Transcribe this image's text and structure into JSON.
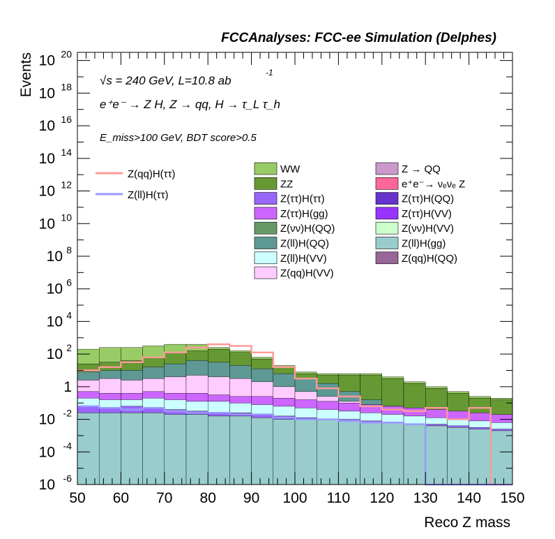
{
  "chart_data": {
    "type": "area",
    "header": "FCCAnalyses: FCC-ee Simulation (Delphes)",
    "xlabel": "Reco Z mass",
    "ylabel": "Events",
    "xlim": [
      50,
      150
    ],
    "ylim_log10": [
      -6,
      20.5
    ],
    "yscale": "log",
    "x_ticks": [
      "50",
      "60",
      "70",
      "80",
      "90",
      "100",
      "110",
      "120",
      "130",
      "140",
      "150"
    ],
    "y_ticks": [
      {
        "base": "10",
        "exp": "20",
        "value": 20
      },
      {
        "base": "10",
        "exp": "18",
        "value": 18
      },
      {
        "base": "10",
        "exp": "16",
        "value": 16
      },
      {
        "base": "10",
        "exp": "14",
        "value": 14
      },
      {
        "base": "10",
        "exp": "12",
        "value": 12
      },
      {
        "base": "10",
        "exp": "10",
        "value": 10
      },
      {
        "base": "10",
        "exp": "8",
        "value": 8
      },
      {
        "base": "10",
        "exp": "6",
        "value": 6
      },
      {
        "base": "10",
        "exp": "4",
        "value": 4
      },
      {
        "base": "10",
        "exp": "2",
        "value": 2
      },
      {
        "base": "1",
        "exp": "",
        "value": 0
      },
      {
        "base": "10",
        "exp": "-2",
        "value": -2
      },
      {
        "base": "10",
        "exp": "-4",
        "value": -4
      },
      {
        "base": "10",
        "exp": "-6",
        "value": -6
      }
    ],
    "annotations": {
      "line1": "√s = 240 GeV, L=10.8 ab",
      "line1_sup": "-1",
      "line2": "e⁺e⁻ → Z H, Z → qq, H → τ_L τ_h",
      "line3": "E_miss>100 GeV, BDT score>0.5"
    },
    "bins": [
      50,
      55,
      60,
      65,
      70,
      75,
      80,
      85,
      90,
      95,
      100,
      105,
      110,
      115,
      120,
      125,
      130,
      135,
      140,
      145,
      150
    ],
    "stack_log10_top": [
      {
        "name": "WW",
        "color": "#99cc66",
        "values": [
          2.3,
          2.4,
          2.4,
          2.5,
          2.6,
          2.6,
          2.4,
          2.2,
          1.8,
          1.3,
          0.9,
          0.8,
          0.8,
          0.8,
          0.6,
          0.3,
          0.0,
          -0.3,
          -0.6,
          -0.7
        ]
      },
      {
        "name": "ZZ",
        "color": "#669933",
        "values": [
          1.4,
          1.5,
          1.6,
          1.8,
          2.1,
          2.2,
          2.3,
          2.1,
          1.7,
          1.2,
          0.8,
          0.7,
          0.7,
          0.7,
          0.5,
          0.2,
          -0.1,
          -0.4,
          -0.7,
          -0.8
        ]
      },
      {
        "name": "Z(ll)H(QQ)",
        "color": "#5f9995",
        "values": [
          0.9,
          1.0,
          1.0,
          1.2,
          1.4,
          1.6,
          1.5,
          1.3,
          1.1,
          0.8,
          0.5,
          0.2,
          -0.3,
          -0.8,
          -1.2,
          -1.5,
          -1.7,
          -1.8,
          -2.0,
          -2.1
        ]
      },
      {
        "name": "Z(qq)H(VV)",
        "color": "#ffccff",
        "values": [
          0.4,
          0.5,
          0.4,
          0.5,
          0.6,
          0.7,
          0.6,
          0.5,
          0.3,
          0.0,
          -0.3,
          -0.6,
          -0.9,
          -1.1,
          -1.3,
          -1.5,
          -1.6,
          -1.8,
          -1.9,
          -2.0
        ]
      },
      {
        "name": "Z(ττ)H(gg)",
        "color": "#cc66ff",
        "values": [
          -0.3,
          -0.4,
          -0.4,
          -0.3,
          -0.4,
          -0.4,
          -0.5,
          -0.6,
          -0.6,
          -0.7,
          -0.8,
          -0.9,
          -1.0,
          -1.1,
          -1.2,
          -1.3,
          -1.4,
          -1.5,
          -1.6,
          -1.7
        ]
      },
      {
        "name": "Z(ll)H(VV)",
        "color": "#ccffff",
        "values": [
          -0.7,
          -0.8,
          -0.8,
          -0.7,
          -0.8,
          -0.9,
          -0.9,
          -1.0,
          -1.1,
          -1.2,
          -1.3,
          -1.4,
          -1.5,
          -1.6,
          -1.7,
          -1.8,
          -1.9,
          -2.0,
          -2.1,
          -2.2
        ]
      },
      {
        "name": "Z(ττ)H(ττ)",
        "color": "#9966ff",
        "values": [
          -1.2,
          -1.3,
          -1.2,
          -1.3,
          -1.4,
          -1.5,
          -1.6,
          -1.6,
          -1.7,
          -1.8,
          -1.9,
          -2.0,
          -2.0,
          -2.1,
          -2.2,
          -2.3,
          -2.3,
          -2.4,
          -2.5,
          -2.6
        ]
      },
      {
        "name": "Z(ll)H(gg)",
        "color": "#99cccc",
        "values": [
          -1.6,
          -1.6,
          -1.6,
          -1.6,
          -1.7,
          -1.7,
          -1.8,
          -1.8,
          -1.9,
          -2.0,
          -2.0,
          -2.0,
          -2.1,
          -2.2,
          -2.2,
          -2.3,
          -2.4,
          -2.5,
          -2.6,
          -2.7
        ]
      }
    ],
    "lines": [
      {
        "name": "Z(qq)H(ττ)",
        "color": "#ff9999",
        "values": [
          1.0,
          1.2,
          1.5,
          1.8,
          2.1,
          2.4,
          2.6,
          2.5,
          2.1,
          1.2,
          0.5,
          -0.1,
          -0.6,
          -1.2,
          -1.4,
          -1.5,
          -1.3,
          -2.0,
          -1.3,
          -6.0
        ]
      },
      {
        "name": "Z(ll)H(ττ)",
        "color": "#9999ff",
        "values": [
          -1.2,
          -1.3,
          -1.4,
          -1.3,
          -1.5,
          -1.6,
          -1.6,
          -1.7,
          -1.7,
          -1.9,
          -2.0,
          -2.0,
          -2.1,
          -2.2,
          -2.2,
          -2.3,
          -6.0,
          -6.0,
          -6.0,
          -6.0
        ]
      }
    ],
    "legend": {
      "lines": [
        {
          "label": "Z(qq)H(ττ)",
          "color": "#ff9999"
        },
        {
          "label": "Z(ll)H(ττ)",
          "color": "#9999ff"
        }
      ],
      "col1": [
        {
          "label": "WW",
          "color": "#99cc66"
        },
        {
          "label": "ZZ",
          "color": "#669933"
        },
        {
          "label": "Z(ττ)H(ττ)",
          "color": "#9966ff"
        },
        {
          "label": "Z(ττ)H(gg)",
          "color": "#cc66ff"
        },
        {
          "label": "Z(νν)H(QQ)",
          "color": "#669966"
        },
        {
          "label": "Z(ll)H(QQ)",
          "color": "#5f9995"
        },
        {
          "label": "Z(ll)H(VV)",
          "color": "#ccffff"
        },
        {
          "label": "Z(qq)H(VV)",
          "color": "#ffccff"
        }
      ],
      "col2": [
        {
          "label": "Z → QQ",
          "color": "#cc99cc"
        },
        {
          "label": "e⁺e⁻→ νₑνₑ Z",
          "color": "#ff6699"
        },
        {
          "label": "Z(ττ)H(QQ)",
          "color": "#6633cc"
        },
        {
          "label": "Z(ττ)H(VV)",
          "color": "#9933ff"
        },
        {
          "label": "Z(νν)H(VV)",
          "color": "#ccffcc"
        },
        {
          "label": "Z(ll)H(gg)",
          "color": "#99cccc"
        },
        {
          "label": "Z(qq)H(QQ)",
          "color": "#996699"
        }
      ]
    }
  }
}
